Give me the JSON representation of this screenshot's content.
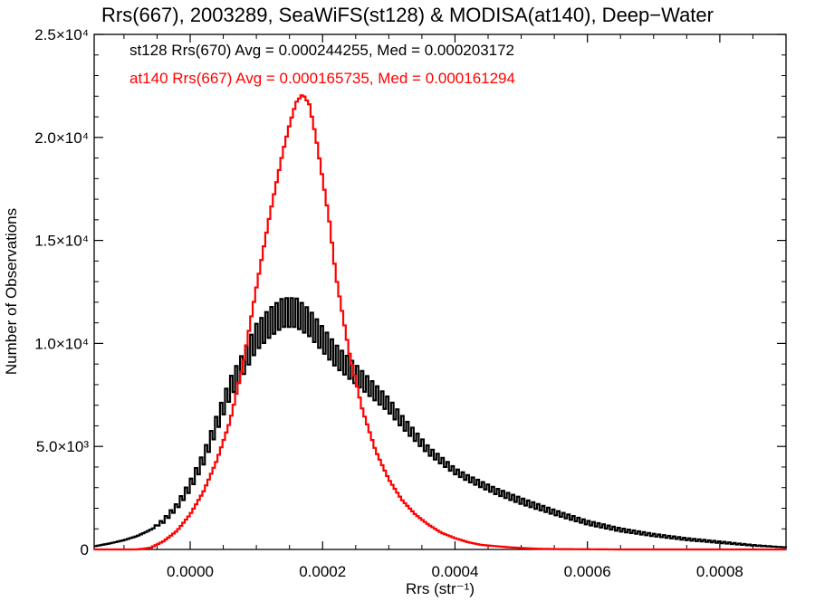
{
  "chart_data": {
    "type": "line",
    "title": "Rrs(667), 2003289, SeaWiFS(st128) & MODISA(at140), Deep−Water",
    "xlabel": "Rrs (str⁻¹)",
    "ylabel": "Number of Observations",
    "xlim": [
      -0.000145,
      0.0009
    ],
    "ylim": [
      0,
      25000
    ],
    "x_ticks": [
      {
        "value": 0.0,
        "label": "0.0000"
      },
      {
        "value": 0.0002,
        "label": "0.0002"
      },
      {
        "value": 0.0004,
        "label": "0.0004"
      },
      {
        "value": 0.0006,
        "label": "0.0006"
      },
      {
        "value": 0.0008,
        "label": "0.0008"
      }
    ],
    "y_ticks": [
      {
        "value": 0,
        "label": "0"
      },
      {
        "value": 5000,
        "label": "5.0×10³"
      },
      {
        "value": 10000,
        "label": "1.0×10⁴"
      },
      {
        "value": 15000,
        "label": "1.5×10⁴"
      },
      {
        "value": 20000,
        "label": "2.0×10⁴"
      },
      {
        "value": 25000,
        "label": "2.5×10⁴"
      }
    ],
    "grid": false,
    "annotations": [
      {
        "text": "st128 Rrs(670) Avg = 0.000244255, Med = 0.000203172",
        "color": "#000000"
      },
      {
        "text": "at140 Rrs(667) Avg = 0.000165735, Med = 0.000161294",
        "color": "#ff0000"
      }
    ],
    "series": [
      {
        "name": "st128 Rrs(670)",
        "color": "#000000",
        "style": "step",
        "x": [
          -0.000145,
          -0.00012,
          -0.0001,
          -8e-05,
          -6e-05,
          -4e-05,
          -2e-05,
          0.0,
          2e-05,
          4e-05,
          6e-05,
          8e-05,
          0.0001,
          0.00012,
          0.00014,
          0.00016,
          0.00018,
          0.0002,
          0.00022,
          0.00024,
          0.00026,
          0.00028,
          0.0003,
          0.00032,
          0.00034,
          0.00036,
          0.00038,
          0.0004,
          0.00042,
          0.00044,
          0.00046,
          0.00048,
          0.0005,
          0.00055,
          0.0006,
          0.00065,
          0.0007,
          0.00075,
          0.0008,
          0.00085,
          0.0009
        ],
        "y": [
          150,
          300,
          450,
          650,
          950,
          1400,
          2100,
          3100,
          4400,
          6100,
          7800,
          9000,
          10300,
          11000,
          11500,
          11500,
          11000,
          10200,
          9400,
          8800,
          8200,
          7600,
          7000,
          6200,
          5500,
          4800,
          4300,
          3800,
          3450,
          3150,
          2850,
          2600,
          2350,
          1800,
          1300,
          950,
          700,
          500,
          350,
          200,
          100
        ],
        "wiggle": [
          0,
          0,
          0,
          0,
          0,
          100,
          150,
          250,
          300,
          400,
          500,
          550,
          650,
          700,
          700,
          700,
          650,
          600,
          550,
          500,
          450,
          400,
          350,
          300,
          250,
          200,
          180,
          150,
          150,
          150,
          150,
          150,
          150,
          120,
          100,
          80,
          60,
          50,
          40,
          20,
          0
        ]
      },
      {
        "name": "at140 Rrs(667)",
        "color": "#ff0000",
        "style": "step",
        "x": [
          -0.000145,
          -0.0001,
          -8e-05,
          -6e-05,
          -4e-05,
          -2e-05,
          0.0,
          2e-05,
          4e-05,
          6e-05,
          8e-05,
          0.0001,
          0.00012,
          0.00014,
          0.00015,
          0.00016,
          0.00017,
          0.00018,
          0.00019,
          0.0002,
          0.00021,
          0.00022,
          0.00024,
          0.00026,
          0.00028,
          0.0003,
          0.00032,
          0.00034,
          0.00036,
          0.00038,
          0.0004,
          0.00042,
          0.00044,
          0.00048,
          0.0005,
          0.00052,
          0.00055,
          0.0006,
          0.00065,
          0.0007,
          0.0009
        ],
        "y": [
          0,
          0,
          0,
          80,
          400,
          900,
          1700,
          2800,
          4300,
          6200,
          9000,
          12700,
          16200,
          19300,
          20600,
          21700,
          22100,
          21600,
          20000,
          18000,
          16000,
          13300,
          9600,
          6800,
          4800,
          3400,
          2400,
          1700,
          1200,
          800,
          550,
          350,
          220,
          110,
          70,
          40,
          20,
          10,
          0,
          0,
          0
        ],
        "wiggle": []
      }
    ]
  }
}
